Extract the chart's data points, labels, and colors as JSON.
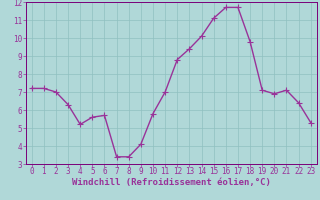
{
  "x": [
    0,
    1,
    2,
    3,
    4,
    5,
    6,
    7,
    8,
    9,
    10,
    11,
    12,
    13,
    14,
    15,
    16,
    17,
    18,
    19,
    20,
    21,
    22,
    23
  ],
  "y": [
    7.2,
    7.2,
    7.0,
    6.3,
    5.2,
    5.6,
    5.7,
    3.4,
    3.4,
    4.1,
    5.8,
    7.0,
    8.8,
    9.4,
    10.1,
    11.1,
    11.7,
    11.7,
    9.8,
    7.1,
    6.9,
    7.1,
    6.4,
    5.3
  ],
  "line_color": "#993399",
  "marker": "+",
  "marker_size": 4,
  "bg_color": "#b0d8d8",
  "grid_color": "#90c0c0",
  "xlabel": "Windchill (Refroidissement éolien,°C)",
  "xlabel_color": "#993399",
  "tick_color": "#993399",
  "spine_color": "#7a007a",
  "ylim": [
    3,
    12
  ],
  "xlim_min": -0.5,
  "xlim_max": 23.5,
  "yticks": [
    3,
    4,
    5,
    6,
    7,
    8,
    9,
    10,
    11,
    12
  ],
  "xticks": [
    0,
    1,
    2,
    3,
    4,
    5,
    6,
    7,
    8,
    9,
    10,
    11,
    12,
    13,
    14,
    15,
    16,
    17,
    18,
    19,
    20,
    21,
    22,
    23
  ],
  "xlabel_fontsize": 6.5,
  "tick_fontsize": 5.5,
  "linewidth": 1.0
}
